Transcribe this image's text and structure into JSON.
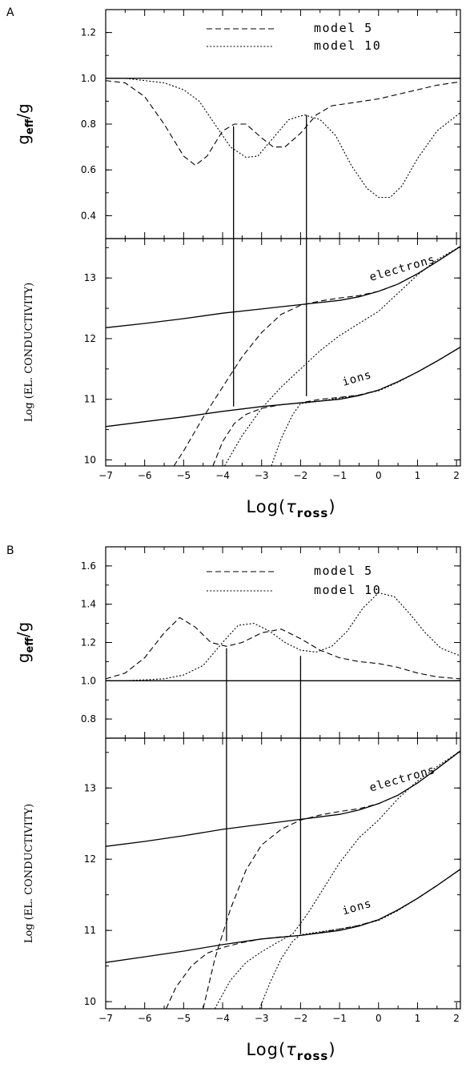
{
  "chart_data": [
    {
      "panel_label": "A",
      "type": "line",
      "ylabel_main": "g",
      "ylabel_sub_num": "eff",
      "ylabel_den": "g",
      "x_range": [
        -7,
        2.1
      ],
      "y_range": [
        0.3,
        1.3
      ],
      "y_ticks": [
        0.4,
        0.6,
        0.8,
        1.0,
        1.2
      ],
      "y_tick_labels": [
        "0.4",
        "0.6",
        "0.8",
        "1.0",
        "1.2"
      ],
      "legend": [
        {
          "name": "model 5",
          "dash": "dashed"
        },
        {
          "name": "model 10",
          "dash": "dotted"
        }
      ],
      "series": [
        {
          "name": "model 5",
          "dash": "dashed",
          "x": [
            -7,
            -6.5,
            -6,
            -5.5,
            -5,
            -4.7,
            -4.4,
            -4,
            -3.7,
            -3.4,
            -3,
            -2.7,
            -2.4,
            -2,
            -1.6,
            -1.2,
            -0.8,
            -0.4,
            0,
            0.5,
            1,
            1.5,
            2.1
          ],
          "y": [
            0.99,
            0.98,
            0.92,
            0.8,
            0.66,
            0.62,
            0.66,
            0.77,
            0.8,
            0.8,
            0.74,
            0.7,
            0.7,
            0.76,
            0.84,
            0.88,
            0.89,
            0.9,
            0.91,
            0.93,
            0.95,
            0.97,
            0.985
          ]
        },
        {
          "name": "model 10",
          "dash": "dotted",
          "x": [
            -7,
            -6.5,
            -6,
            -5.5,
            -5,
            -4.6,
            -4.2,
            -3.8,
            -3.4,
            -3.1,
            -2.7,
            -2.3,
            -1.9,
            -1.5,
            -1.1,
            -0.7,
            -0.3,
            0,
            0.3,
            0.6,
            1,
            1.5,
            2.1
          ],
          "y": [
            1.0,
            1.0,
            0.99,
            0.98,
            0.95,
            0.9,
            0.8,
            0.7,
            0.655,
            0.66,
            0.74,
            0.82,
            0.84,
            0.82,
            0.75,
            0.62,
            0.52,
            0.48,
            0.48,
            0.53,
            0.65,
            0.77,
            0.85
          ]
        },
        {
          "name": "reference",
          "dash": "solid",
          "x": [
            -7,
            2.1
          ],
          "y": [
            1.0,
            1.0
          ]
        }
      ]
    },
    {
      "panel_label": "",
      "type": "line",
      "ylabel": "Log (EL. CONDUCTIVITY)",
      "xlabel_main": "Log(",
      "xlabel_tau": "τ",
      "xlabel_sub": "ross",
      "xlabel_close": ")",
      "x_range": [
        -7,
        2.1
      ],
      "y_range": [
        9.9,
        13.65
      ],
      "x_ticks": [
        -7,
        -6,
        -5,
        -4,
        -3,
        -2,
        -1,
        0,
        1,
        2
      ],
      "x_tick_labels": [
        "-7",
        "-6",
        "-5",
        "-4",
        "-3",
        "-2",
        "-1",
        "0",
        "1",
        "2"
      ],
      "y_ticks": [
        10,
        11,
        12,
        13
      ],
      "y_tick_labels": [
        "10",
        "11",
        "12",
        "13"
      ],
      "annotations": [
        "electrons",
        "ions"
      ],
      "series": [
        {
          "name": "electrons",
          "dash": "solid",
          "x": [
            -7,
            -6,
            -5,
            -4,
            -3,
            -2,
            -1,
            -0.5,
            0,
            0.5,
            1,
            1.5,
            2.1
          ],
          "y": [
            12.18,
            12.25,
            12.33,
            12.42,
            12.49,
            12.56,
            12.63,
            12.69,
            12.78,
            12.9,
            13.07,
            13.27,
            13.52
          ]
        },
        {
          "name": "ions",
          "dash": "solid",
          "x": [
            -7,
            -6,
            -5,
            -4,
            -3,
            -2,
            -1,
            -0.5,
            0,
            0.5,
            1,
            1.5,
            2.1
          ],
          "y": [
            10.55,
            10.63,
            10.71,
            10.8,
            10.88,
            10.94,
            11.0,
            11.06,
            11.15,
            11.29,
            11.45,
            11.63,
            11.86
          ]
        },
        {
          "name": "model 5 electrons",
          "dash": "dashed",
          "x": [
            -5.25,
            -5,
            -4.5,
            -4,
            -3.5,
            -3,
            -2.5,
            -2,
            -1.5,
            -1,
            -0.5,
            0,
            0.5,
            1,
            1.5,
            2.1
          ],
          "y": [
            9.9,
            10.15,
            10.7,
            11.2,
            11.7,
            12.1,
            12.4,
            12.55,
            12.62,
            12.67,
            12.71,
            12.78,
            12.9,
            13.07,
            13.27,
            13.52
          ]
        },
        {
          "name": "model 5 ions",
          "dash": "dashed",
          "x": [
            -4.25,
            -4,
            -3.7,
            -3.4,
            -3,
            -2.5,
            -2,
            -1.5,
            -1,
            -0.5,
            0,
            0.5,
            1,
            1.5,
            2.1
          ],
          "y": [
            9.9,
            10.3,
            10.6,
            10.75,
            10.85,
            10.91,
            10.94,
            11.0,
            11.03,
            11.07,
            11.15,
            11.29,
            11.45,
            11.63,
            11.86
          ]
        },
        {
          "name": "model 10 electrons",
          "dash": "dotted",
          "x": [
            -3.95,
            -3.5,
            -3,
            -2.5,
            -2,
            -1.5,
            -1,
            -0.5,
            0,
            0.5,
            1,
            1.5,
            2.1
          ],
          "y": [
            9.9,
            10.4,
            10.85,
            11.2,
            11.5,
            11.8,
            12.05,
            12.25,
            12.45,
            12.75,
            13.05,
            13.3,
            13.52
          ]
        },
        {
          "name": "model 10 ions",
          "dash": "dotted",
          "x": [
            -2.75,
            -2.5,
            -2.2,
            -2,
            -1.5,
            -1,
            -0.5,
            0,
            0.5,
            1,
            1.5,
            2.1
          ],
          "y": [
            9.9,
            10.35,
            10.75,
            10.93,
            10.97,
            11.02,
            11.07,
            11.14,
            11.28,
            11.45,
            11.63,
            11.86
          ]
        },
        {
          "name": "connector 1",
          "dash": "solid",
          "x": [
            -3.72,
            -3.72
          ],
          "y": [
            10.88,
            13.65
          ]
        },
        {
          "name": "connector 2",
          "dash": "solid",
          "x": [
            -1.85,
            -1.85
          ],
          "y": [
            11.05,
            13.65
          ]
        }
      ]
    },
    {
      "panel_label": "B",
      "type": "line",
      "ylabel_main": "g",
      "ylabel_sub_num": "eff",
      "ylabel_den": "g",
      "x_range": [
        -7,
        2.1
      ],
      "y_range": [
        0.7,
        1.7
      ],
      "y_ticks": [
        0.8,
        1.0,
        1.2,
        1.4,
        1.6
      ],
      "y_tick_labels": [
        "0.8",
        "1.0",
        "1.2",
        "1.4",
        "1.6"
      ],
      "legend": [
        {
          "name": "model 5",
          "dash": "dashed"
        },
        {
          "name": "model 10",
          "dash": "dotted"
        }
      ],
      "series": [
        {
          "name": "model 5",
          "dash": "dashed",
          "x": [
            -7,
            -6.5,
            -6,
            -5.5,
            -5.1,
            -4.7,
            -4.3,
            -3.9,
            -3.5,
            -3,
            -2.5,
            -2,
            -1.5,
            -1,
            -0.5,
            0,
            0.5,
            1,
            1.5,
            2.1
          ],
          "y": [
            1.01,
            1.04,
            1.12,
            1.25,
            1.33,
            1.28,
            1.2,
            1.18,
            1.2,
            1.25,
            1.27,
            1.22,
            1.16,
            1.12,
            1.1,
            1.09,
            1.07,
            1.04,
            1.02,
            1.01
          ]
        },
        {
          "name": "model 10",
          "dash": "dotted",
          "x": [
            -7,
            -6.5,
            -6,
            -5.5,
            -5,
            -4.5,
            -4,
            -3.6,
            -3.2,
            -2.8,
            -2.4,
            -2,
            -1.6,
            -1.2,
            -0.8,
            -0.4,
            0,
            0.4,
            0.8,
            1.2,
            1.6,
            2.1
          ],
          "y": [
            1.0,
            1.0,
            1.005,
            1.01,
            1.03,
            1.08,
            1.2,
            1.29,
            1.3,
            1.26,
            1.2,
            1.16,
            1.15,
            1.18,
            1.26,
            1.38,
            1.46,
            1.44,
            1.35,
            1.25,
            1.17,
            1.13
          ]
        },
        {
          "name": "reference",
          "dash": "solid",
          "x": [
            -7,
            2.1
          ],
          "y": [
            1.0,
            1.0
          ]
        }
      ]
    },
    {
      "panel_label": "",
      "type": "line",
      "ylabel": "Log (EL. CONDUCTIVITY)",
      "xlabel_main": "Log(",
      "xlabel_tau": "τ",
      "xlabel_sub": "ross",
      "xlabel_close": ")",
      "x_range": [
        -7,
        2.1
      ],
      "y_range": [
        9.9,
        13.7
      ],
      "x_ticks": [
        -7,
        -6,
        -5,
        -4,
        -3,
        -2,
        -1,
        0,
        1,
        2
      ],
      "x_tick_labels": [
        "-7",
        "-6",
        "-5",
        "-4",
        "-3",
        "-2",
        "-1",
        "0",
        "1",
        "2"
      ],
      "y_ticks": [
        10,
        11,
        12,
        13
      ],
      "y_tick_labels": [
        "10",
        "11",
        "12",
        "13"
      ],
      "annotations": [
        "electrons",
        "ions"
      ],
      "series": [
        {
          "name": "electrons",
          "dash": "solid",
          "x": [
            -7,
            -6,
            -5,
            -4,
            -3,
            -2,
            -1,
            -0.5,
            0,
            0.5,
            1,
            1.5,
            2.1
          ],
          "y": [
            12.18,
            12.25,
            12.33,
            12.42,
            12.49,
            12.56,
            12.63,
            12.69,
            12.78,
            12.9,
            13.07,
            13.27,
            13.52
          ]
        },
        {
          "name": "ions",
          "dash": "solid",
          "x": [
            -7,
            -6,
            -5,
            -4,
            -3,
            -2,
            -1,
            -0.5,
            0,
            0.5,
            1,
            1.5,
            2.1
          ],
          "y": [
            10.55,
            10.63,
            10.71,
            10.8,
            10.88,
            10.93,
            11.0,
            11.06,
            11.15,
            11.29,
            11.45,
            11.63,
            11.86
          ]
        },
        {
          "name": "model 5 electrons",
          "dash": "dashed",
          "x": [
            -4.5,
            -4.2,
            -3.8,
            -3.4,
            -3,
            -2.5,
            -2,
            -1.5,
            -1,
            -0.5,
            0,
            0.5,
            1,
            1.5,
            2.1
          ],
          "y": [
            9.9,
            10.6,
            11.3,
            11.85,
            12.2,
            12.42,
            12.55,
            12.62,
            12.67,
            12.71,
            12.78,
            12.9,
            13.07,
            13.27,
            13.52
          ]
        },
        {
          "name": "model 5 ions",
          "dash": "dashed",
          "x": [
            -5.45,
            -5.2,
            -4.8,
            -4.4,
            -4,
            -3.5,
            -3,
            -2.5,
            -2,
            -1.5,
            -1,
            -0.5,
            0,
            0.5,
            1,
            1.5,
            2.1
          ],
          "y": [
            9.9,
            10.2,
            10.5,
            10.68,
            10.76,
            10.83,
            10.88,
            10.91,
            10.93,
            10.97,
            11.02,
            11.07,
            11.15,
            11.29,
            11.45,
            11.63,
            11.86
          ]
        },
        {
          "name": "model 10 electrons",
          "dash": "dotted",
          "x": [
            -4.2,
            -3.8,
            -3.4,
            -3,
            -2.6,
            -2.2,
            -1.8,
            -1.4,
            -1,
            -0.5,
            0,
            0.5,
            1,
            1.5,
            2.1
          ],
          "y": [
            9.9,
            10.3,
            10.55,
            10.7,
            10.83,
            10.95,
            11.25,
            11.6,
            11.95,
            12.3,
            12.55,
            12.85,
            13.1,
            13.3,
            13.52
          ]
        },
        {
          "name": "model 10 ions",
          "dash": "dotted",
          "x": [
            -3.05,
            -2.8,
            -2.5,
            -2.2,
            -2,
            -1.5,
            -1,
            -0.5,
            0,
            0.5,
            1,
            1.5,
            2.1
          ],
          "y": [
            9.9,
            10.25,
            10.6,
            10.85,
            10.94,
            10.98,
            11.02,
            11.07,
            11.14,
            11.28,
            11.45,
            11.63,
            11.86
          ]
        },
        {
          "name": "connector 1",
          "dash": "solid",
          "x": [
            -3.9,
            -3.9
          ],
          "y": [
            10.85,
            13.7
          ]
        },
        {
          "name": "connector 2",
          "dash": "solid",
          "x": [
            -2.0,
            -2.0
          ],
          "y": [
            10.95,
            13.7
          ]
        }
      ]
    }
  ]
}
